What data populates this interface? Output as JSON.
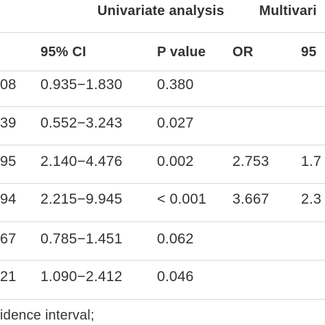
{
  "header_groups": {
    "univariate": "Univariate analysis",
    "multivariate": "Multivari"
  },
  "columns": {
    "ci": "95% CI",
    "p_value": "P value",
    "or": "OR",
    "ci2": "95"
  },
  "rows": [
    {
      "or_tail": "08",
      "ci": "0.935−1.830",
      "p": "0.380",
      "mor": "",
      "mci": ""
    },
    {
      "or_tail": "39",
      "ci": "0.552−3.243",
      "p": "0.027",
      "mor": "",
      "mci": ""
    },
    {
      "or_tail": "95",
      "ci": "2.140−4.476",
      "p": "0.002",
      "mor": "2.753",
      "mci": "1.7"
    },
    {
      "or_tail": "94",
      "ci": "2.215−9.945",
      "p": "< 0.001",
      "mor": "3.667",
      "mci": "2.3"
    },
    {
      "or_tail": "67",
      "ci": "0.785−1.451",
      "p": "0.062",
      "mor": "",
      "mci": ""
    },
    {
      "or_tail": "21",
      "ci": "1.090−2.412",
      "p": "0.046",
      "mor": "",
      "mci": ""
    }
  ],
  "footnote": "idence interval;"
}
